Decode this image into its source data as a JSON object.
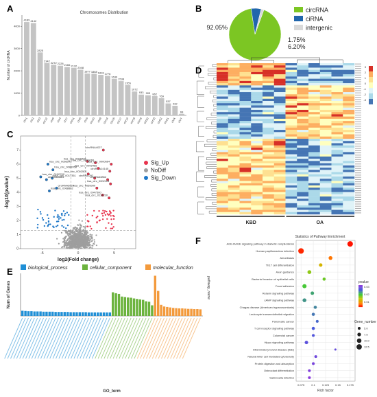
{
  "panels": {
    "a": "A",
    "b": "B",
    "c": "C",
    "d": "D",
    "e": "E",
    "f": "F"
  },
  "chart_data": [
    {
      "panel": "A",
      "type": "bar",
      "title": "Chromosomes Distribution",
      "ylabel": "Number of circRNA",
      "xlabel": "",
      "ylim": [
        0,
        4500
      ],
      "yticks": [
        0,
        1000,
        2000,
        3000,
        4000
      ],
      "categories": [
        "chr1",
        "chr2",
        "chr3",
        "chr12",
        "chr5",
        "chr4",
        "chr7",
        "chr11",
        "chr6",
        "chr9",
        "chr10",
        "chr8",
        "chr14",
        "chr15",
        "chr17",
        "chr13",
        "chr16",
        "chr19",
        "chr20",
        "chr18",
        "chr22",
        "chr21",
        "chrX",
        "chrY"
      ],
      "values": [
        4189,
        4142,
        2825,
        2342,
        2272,
        2228,
        2166,
        2132,
        2048,
        1877,
        1868,
        1818,
        1776,
        1639,
        1538,
        1355,
        1072,
        933,
        903,
        862,
        769,
        537,
        432,
        68
      ],
      "color": "#c4c4c4"
    },
    {
      "panel": "B",
      "type": "pie",
      "labels": [
        "circRNA",
        "ciRNA",
        "intergenic"
      ],
      "values": [
        92.05,
        6.2,
        1.75
      ],
      "value_labels": [
        "92.05%",
        "6.20%",
        "1.75%"
      ],
      "colors": [
        "#7cc623",
        "#2166ac",
        "#d9d9d9"
      ]
    },
    {
      "panel": "C",
      "type": "scatter",
      "xlabel": "log2(Fold change)",
      "ylabel": "-log10(pvalue)",
      "xlim": [
        -8,
        8
      ],
      "xticks": [
        -5,
        0,
        5
      ],
      "ylim": [
        0,
        8
      ],
      "yticks": [
        0,
        1,
        2,
        3,
        4,
        5,
        6,
        7
      ],
      "legend": [
        "Sig_Up",
        "NoDiff",
        "Sig_Down"
      ],
      "legend_colors": [
        "#e8344e",
        "#9e9e9e",
        "#1f78c8"
      ],
      "labels": [
        {
          "text": "hsa_circ_0066542",
          "x": -4.2,
          "y": 6.0
        },
        {
          "text": "hsa_circ_0086958",
          "x": -3.5,
          "y": 5.6
        },
        {
          "text": "hsa_circ_0100700",
          "x": -5.2,
          "y": 5.1
        },
        {
          "text": "hsa_circ_0017351",
          "x": -3.6,
          "y": 5.0
        },
        {
          "text": "circRNA8864",
          "x": -4.4,
          "y": 4.9
        },
        {
          "text": "circRNA5820",
          "x": -3.0,
          "y": 4.3
        },
        {
          "text": "hsa_circ_0068862",
          "x": -4.0,
          "y": 4.1
        },
        {
          "text": "circRNA4027",
          "x": 3.5,
          "y": 7.0
        },
        {
          "text": "hsa_circ_0008425",
          "x": 1.3,
          "y": 6.2
        },
        {
          "text": "hsa_circ_0000066",
          "x": 2.4,
          "y": 6.1
        },
        {
          "text": "hsa_circ_0000664",
          "x": 4.6,
          "y": 6.0
        },
        {
          "text": "circRNA14145",
          "x": 4.4,
          "y": 5.5
        },
        {
          "text": "hsa_circ_0005455",
          "x": 2.8,
          "y": 5.7
        },
        {
          "text": "hsa_circ_0002501",
          "x": 1.4,
          "y": 5.3
        },
        {
          "text": "circRNA292",
          "x": 2.3,
          "y": 5.0
        },
        {
          "text": "circRNA3862",
          "x": 4.1,
          "y": 4.9
        },
        {
          "text": "hsa_circ_0002113",
          "x": 4.5,
          "y": 4.6
        },
        {
          "text": "hsa_circ_0055000",
          "x": 2.6,
          "y": 4.3
        },
        {
          "text": "hsa_circ_0047560",
          "x": 3.4,
          "y": 3.8
        },
        {
          "text": "hsa_circ_0114230",
          "x": 4.3,
          "y": 3.6
        }
      ]
    },
    {
      "panel": "D",
      "type": "heatmap",
      "x_groups": [
        "KBD",
        "OA"
      ],
      "legend_ticks": [
        "3",
        "2",
        "1",
        "0",
        "-1",
        "-2",
        "-3"
      ],
      "colors": [
        "#d73027",
        "#fdae61",
        "#ffffbf",
        "#abd9e9",
        "#4575b4"
      ]
    },
    {
      "panel": "E",
      "type": "bar",
      "xlabel": "GO_term",
      "ylabel": "Num of Genes",
      "right_label": "pathway_name",
      "legend": [
        "biological_process",
        "cellular_component",
        "molecular_function"
      ],
      "legend_colors": [
        "#1f8fd6",
        "#6cb33e",
        "#f39a3c"
      ],
      "series": [
        {
          "name": "biological_process",
          "values": [
            22,
            21,
            20,
            20,
            19,
            19,
            19,
            18,
            18,
            18,
            18,
            17,
            17,
            17,
            17,
            17,
            16,
            16,
            16,
            16,
            16,
            16,
            15,
            15,
            15,
            15,
            15,
            15,
            15,
            15
          ]
        },
        {
          "name": "cellular_component",
          "values": [
            100,
            96,
            93,
            82,
            80,
            78,
            77,
            74,
            72,
            70,
            68,
            62,
            60,
            45
          ]
        },
        {
          "name": "molecular_function",
          "values": [
            170,
            106,
            47,
            40,
            38,
            36,
            34,
            33,
            32,
            32,
            31,
            30,
            30,
            29,
            29,
            28
          ]
        }
      ]
    },
    {
      "panel": "F",
      "type": "scatter",
      "title": "Statistics of Pathway Enrichment",
      "xlabel": "Rich factor",
      "xticks": [
        0.075,
        0.1,
        0.125,
        0.15,
        0.175
      ],
      "xlim": [
        0.065,
        0.185
      ],
      "pvalue_legend_title": "pvalue",
      "pvalue_ticks": [
        "0.03",
        "0.02",
        "0.01"
      ],
      "gene_number_title": "Gene_number",
      "gene_number_ticks": [
        "5.0",
        "7.5",
        "10.0",
        "12.5"
      ],
      "pathways": [
        {
          "name": "AGE-RAGE signaling pathway in diabetic complications",
          "rich": 0.175,
          "genes": 13,
          "p": 0.001
        },
        {
          "name": "Human papillomavirus infection",
          "rich": 0.075,
          "genes": 13,
          "p": 0.002
        },
        {
          "name": "Amoebiasis",
          "rich": 0.135,
          "genes": 8,
          "p": 0.006
        },
        {
          "name": "Th17 cell differentiation",
          "rich": 0.115,
          "genes": 7,
          "p": 0.012
        },
        {
          "name": "Axon guidance",
          "rich": 0.092,
          "genes": 8,
          "p": 0.017
        },
        {
          "name": "Bacterial invasion of epithelial cells",
          "rich": 0.122,
          "genes": 6,
          "p": 0.019
        },
        {
          "name": "Focal adhesion",
          "rich": 0.082,
          "genes": 9,
          "p": 0.021
        },
        {
          "name": "Relaxin signaling pathway",
          "rich": 0.098,
          "genes": 7,
          "p": 0.024
        },
        {
          "name": "cAMP signaling pathway",
          "rich": 0.082,
          "genes": 8,
          "p": 0.025
        },
        {
          "name": "Chagas disease (American trypanosomiasis)",
          "rich": 0.104,
          "genes": 6,
          "p": 0.026
        },
        {
          "name": "Leukocyte transendothelial migration",
          "rich": 0.1,
          "genes": 6,
          "p": 0.027
        },
        {
          "name": "Pancreatic cancer",
          "rich": 0.108,
          "genes": 5,
          "p": 0.028
        },
        {
          "name": "T cell receptor signaling pathway",
          "rich": 0.1,
          "genes": 6,
          "p": 0.029
        },
        {
          "name": "Colorectal cancer",
          "rich": 0.1,
          "genes": 5,
          "p": 0.03
        },
        {
          "name": "Hippo signaling pathway",
          "rich": 0.086,
          "genes": 7,
          "p": 0.031
        },
        {
          "name": "Inflammatory bowel disease (IBD)",
          "rich": 0.145,
          "genes": 3,
          "p": 0.032
        },
        {
          "name": "Natural killer cell mediated cytotoxicity",
          "rich": 0.105,
          "genes": 5,
          "p": 0.033
        },
        {
          "name": "Protein digestion and absorption",
          "rich": 0.1,
          "genes": 5,
          "p": 0.034
        },
        {
          "name": "Osteoclast differentiation",
          "rich": 0.092,
          "genes": 5,
          "p": 0.035
        },
        {
          "name": "Salmonella infection",
          "rich": 0.092,
          "genes": 5,
          "p": 0.036
        }
      ]
    }
  ]
}
